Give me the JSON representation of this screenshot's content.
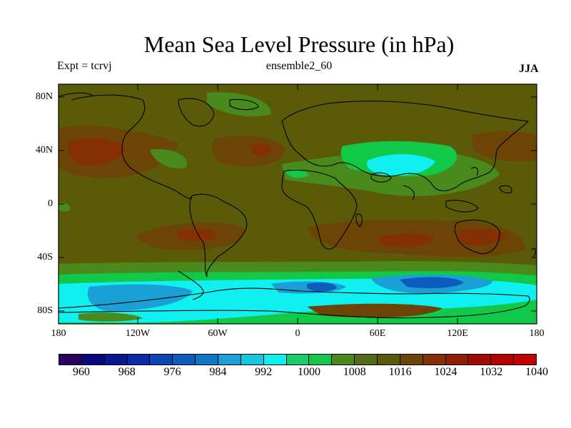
{
  "title": "Mean Sea Level Pressure (in hPa)",
  "experiment_label": "Expt = tcrvj",
  "ensemble_label": "ensemble2_60",
  "season_label": "JJA",
  "axes": {
    "lat_ticks": [
      "80N",
      "40N",
      "0",
      "40S",
      "80S"
    ],
    "lon_ticks": [
      "180",
      "120W",
      "60W",
      "0",
      "60E",
      "120E",
      "180"
    ]
  },
  "colorbar": {
    "colors": [
      "#2a0062",
      "#0a0a80",
      "#071890",
      "#0a2aa8",
      "#0b46b6",
      "#0c5cbe",
      "#0e78c8",
      "#1aa0d6",
      "#13c7e0",
      "#10f0f0",
      "#19cc6a",
      "#12c848",
      "#4a8a1c",
      "#556b16",
      "#5a5a08",
      "#6c4408",
      "#843004",
      "#901e04",
      "#a00c04",
      "#b60000",
      "#c40000"
    ],
    "labels": [
      "960",
      "968",
      "976",
      "984",
      "992",
      "1000",
      "1008",
      "1016",
      "1024",
      "1032",
      "1040"
    ]
  },
  "palette": {
    "background_field": "#5a5a08",
    "band_1008": "#4a8a1c",
    "band_1000": "#12c848",
    "band_992": "#10f0f0",
    "band_984": "#1aa0d6",
    "band_976": "#0c5cbe",
    "high_1024": "#6c4408",
    "high_1032": "#843004"
  }
}
